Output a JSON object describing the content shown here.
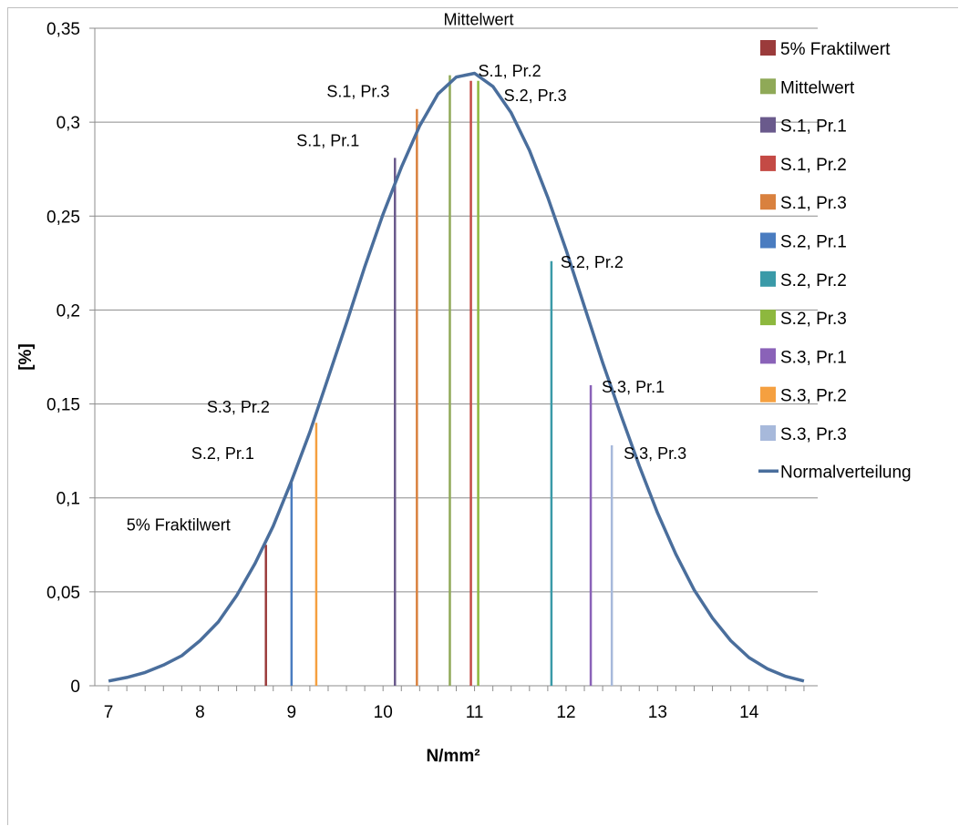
{
  "chart_data": {
    "type": "line",
    "xlabel": "N/mm²",
    "ylabel": "[%]",
    "xlim": [
      6.85,
      14.75
    ],
    "ylim": [
      0,
      0.35
    ],
    "x_ticks": [
      7,
      8,
      9,
      10,
      11,
      12,
      13,
      14
    ],
    "y_ticks": [
      0,
      0.05,
      0.1,
      0.15,
      0.2,
      0.25,
      0.3,
      0.35
    ],
    "y_tick_labels": [
      "0",
      "0,05",
      "0,1",
      "0,15",
      "0,2",
      "0,25",
      "0,3",
      "0,35"
    ],
    "grid": true,
    "legend_position": "right",
    "curve": {
      "name": "Normalverteilung",
      "color": "#4a6e9c",
      "x": [
        7.0,
        7.2,
        7.4,
        7.6,
        7.8,
        8.0,
        8.2,
        8.4,
        8.6,
        8.8,
        9.0,
        9.2,
        9.4,
        9.6,
        9.8,
        10.0,
        10.2,
        10.4,
        10.6,
        10.8,
        11.0,
        11.2,
        11.4,
        11.6,
        11.8,
        12.0,
        12.2,
        12.4,
        12.6,
        12.8,
        13.0,
        13.2,
        13.4,
        13.6,
        13.8,
        14.0,
        14.2,
        14.4,
        14.6
      ],
      "y": [
        0.0025,
        0.0044,
        0.0071,
        0.011,
        0.016,
        0.024,
        0.034,
        0.048,
        0.065,
        0.085,
        0.109,
        0.135,
        0.164,
        0.193,
        0.223,
        0.251,
        0.276,
        0.298,
        0.315,
        0.324,
        0.326,
        0.319,
        0.305,
        0.285,
        0.26,
        0.232,
        0.202,
        0.172,
        0.144,
        0.117,
        0.092,
        0.07,
        0.051,
        0.036,
        0.024,
        0.015,
        0.009,
        0.005,
        0.0025
      ]
    },
    "markers": [
      {
        "name": "5% Fraktilwert",
        "color": "#9b3b3b",
        "x": 8.72,
        "y": 0.075,
        "label": "5% Fraktilwert"
      },
      {
        "name": "Mittelwert",
        "color": "#8fa957",
        "x": 10.73,
        "y": 0.325,
        "label": "Mittelwert"
      },
      {
        "name": "S.1, Pr.1",
        "color": "#6a5a8c",
        "x": 10.13,
        "y": 0.281,
        "label": "S.1, Pr.1"
      },
      {
        "name": "S.1, Pr.2",
        "color": "#c44a45",
        "x": 10.96,
        "y": 0.322,
        "label": "S.1, Pr.2"
      },
      {
        "name": "S.1, Pr.3",
        "color": "#d9813e",
        "x": 10.37,
        "y": 0.307,
        "label": "S.1, Pr.3"
      },
      {
        "name": "S.2, Pr.1",
        "color": "#4a7cc0",
        "x": 9.0,
        "y": 0.108,
        "label": "S.2, Pr.1"
      },
      {
        "name": "S.2, Pr.2",
        "color": "#3a9aa8",
        "x": 11.84,
        "y": 0.226,
        "label": "S.2, Pr.2"
      },
      {
        "name": "S.2, Pr.3",
        "color": "#8db83e",
        "x": 11.04,
        "y": 0.322,
        "label": "S.2, Pr.3"
      },
      {
        "name": "S.3, Pr.1",
        "color": "#8a62b8",
        "x": 12.27,
        "y": 0.16,
        "label": "S.3, Pr.1"
      },
      {
        "name": "S.3, Pr.2",
        "color": "#f5a040",
        "x": 9.27,
        "y": 0.14,
        "label": "S.3, Pr.2"
      },
      {
        "name": "S.3, Pr.3",
        "color": "#a7b9db",
        "x": 12.5,
        "y": 0.128,
        "label": "S.3, Pr.3"
      }
    ]
  }
}
